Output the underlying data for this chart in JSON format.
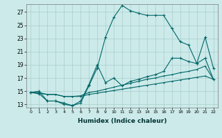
{
  "xlabel": "Humidex (Indice chaleur)",
  "background_color": "#cceaea",
  "grid_color": "#aacccc",
  "line_color": "#006666",
  "xlim": [
    -0.5,
    22.5
  ],
  "ylim": [
    12.5,
    28.2
  ],
  "xticks": [
    0,
    1,
    2,
    3,
    4,
    5,
    6,
    7,
    8,
    9,
    10,
    11,
    12,
    13,
    14,
    15,
    16,
    17,
    18,
    19,
    20,
    21,
    22
  ],
  "yticks": [
    13,
    15,
    17,
    19,
    21,
    23,
    25,
    27
  ],
  "x": [
    0,
    1,
    2,
    3,
    4,
    5,
    6,
    7,
    8,
    9,
    10,
    11,
    12,
    13,
    14,
    15,
    16,
    17,
    18,
    19,
    20,
    21,
    22
  ],
  "line1_y": [
    14.8,
    15.0,
    13.5,
    13.5,
    13.0,
    12.8,
    13.2,
    15.8,
    18.5,
    23.2,
    26.2,
    28.0,
    27.2,
    26.8,
    26.5,
    26.5,
    26.5,
    24.5,
    22.5,
    22.0,
    19.2,
    23.2,
    18.5
  ],
  "line2_y": [
    14.8,
    14.6,
    13.5,
    13.5,
    13.2,
    12.8,
    13.5,
    16.0,
    19.0,
    16.3,
    17.0,
    15.8,
    16.5,
    16.8,
    17.2,
    17.5,
    18.0,
    20.0,
    20.0,
    19.5,
    19.2,
    20.0,
    16.8
  ],
  "line3_y": [
    14.8,
    14.8,
    14.5,
    14.5,
    14.2,
    14.2,
    14.3,
    14.8,
    15.0,
    15.3,
    15.6,
    15.9,
    16.2,
    16.5,
    16.8,
    17.0,
    17.3,
    17.5,
    17.8,
    18.0,
    18.3,
    18.8,
    16.8
  ],
  "line4_y": [
    14.8,
    14.7,
    14.5,
    14.5,
    14.2,
    14.2,
    14.2,
    14.5,
    14.7,
    14.9,
    15.1,
    15.3,
    15.5,
    15.7,
    15.9,
    16.1,
    16.3,
    16.5,
    16.7,
    16.9,
    17.1,
    17.3,
    16.8
  ]
}
